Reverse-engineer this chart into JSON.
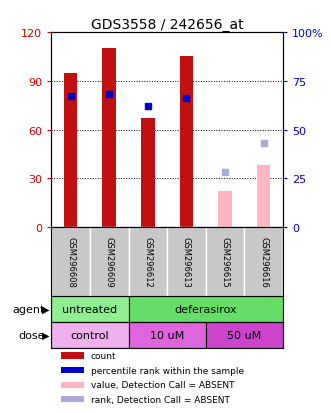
{
  "title": "GDS3558 / 242656_at",
  "samples": [
    "GSM296608",
    "GSM296609",
    "GSM296612",
    "GSM296613",
    "GSM296615",
    "GSM296616"
  ],
  "counts": [
    95,
    110,
    67,
    105,
    null,
    null
  ],
  "counts_absent": [
    null,
    null,
    null,
    null,
    22,
    38
  ],
  "percentile_ranks": [
    67,
    68,
    62,
    66,
    null,
    null
  ],
  "percentile_ranks_absent": [
    null,
    null,
    null,
    null,
    28,
    43
  ],
  "ylim_left": [
    0,
    120
  ],
  "ylim_right": [
    0,
    100
  ],
  "yticks_left": [
    0,
    30,
    60,
    90,
    120
  ],
  "yticks_right": [
    0,
    25,
    50,
    75,
    100
  ],
  "ytick_labels_left": [
    "0",
    "30",
    "60",
    "90",
    "120"
  ],
  "ytick_labels_right": [
    "0",
    "25",
    "50",
    "75",
    "100%"
  ],
  "agent_groups": [
    {
      "label": "untreated",
      "color": "#90EE90",
      "span": [
        0,
        2
      ]
    },
    {
      "label": "deferasirox",
      "color": "#66DD66",
      "span": [
        2,
        6
      ]
    }
  ],
  "dose_groups": [
    {
      "label": "control",
      "color": "#EEB0EE",
      "span": [
        0,
        2
      ]
    },
    {
      "label": "10 uM",
      "color": "#DD66DD",
      "span": [
        2,
        4
      ]
    },
    {
      "label": "50 uM",
      "color": "#CC44CC",
      "span": [
        4,
        6
      ]
    }
  ],
  "bar_color_present": "#C01010",
  "bar_color_absent": "#FFB6C1",
  "rank_color_present": "#0000CC",
  "rank_color_absent": "#AAAADD",
  "legend_items": [
    {
      "label": "count",
      "color": "#C01010"
    },
    {
      "label": "percentile rank within the sample",
      "color": "#0000CC"
    },
    {
      "label": "value, Detection Call = ABSENT",
      "color": "#FFB6C1"
    },
    {
      "label": "rank, Detection Call = ABSENT",
      "color": "#AAAADD"
    }
  ],
  "bar_width": 0.35,
  "rank_marker_size": 5,
  "background_color": "#FFFFFF",
  "plot_bg_color": "#FFFFFF",
  "tick_color_left": "#CC0000",
  "tick_color_right": "#0000CC",
  "sample_box_color": "#C8C8C8",
  "sample_sep_color": "#FFFFFF",
  "agent_left_color": "#90EE90",
  "agent_right_color": "#66DD66",
  "dose_colors": [
    "#EEB0EE",
    "#DD66DD",
    "#CC44CC"
  ]
}
